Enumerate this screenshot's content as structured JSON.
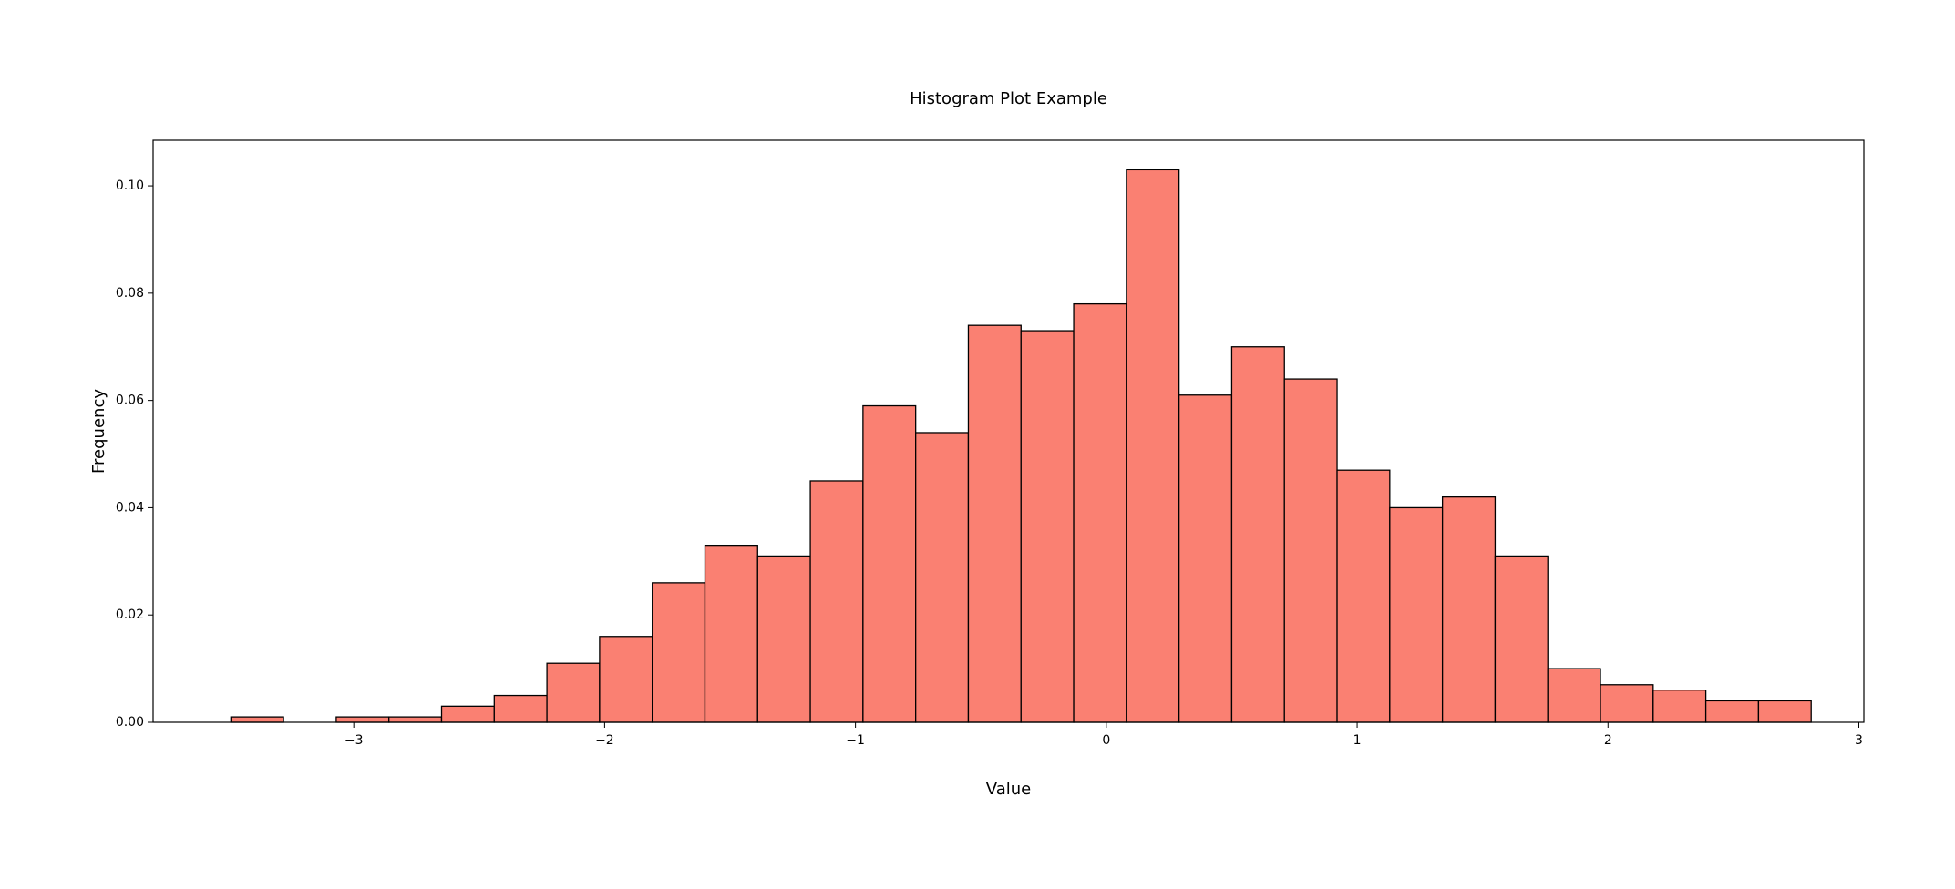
{
  "chart_data": {
    "type": "bar",
    "title": "Histogram Plot Example",
    "xlabel": "Value",
    "ylabel": "Frequency",
    "xlim": [
      -3.8,
      3.02
    ],
    "ylim": [
      0,
      0.1085
    ],
    "xticks": [
      {
        "value": -3,
        "label": "−3"
      },
      {
        "value": -2,
        "label": "−2"
      },
      {
        "value": -1,
        "label": "−1"
      },
      {
        "value": 0,
        "label": "0"
      },
      {
        "value": 1,
        "label": "1"
      },
      {
        "value": 2,
        "label": "2"
      },
      {
        "value": 3,
        "label": "3"
      }
    ],
    "yticks": [
      {
        "value": 0.0,
        "label": "0.00"
      },
      {
        "value": 0.02,
        "label": "0.02"
      },
      {
        "value": 0.04,
        "label": "0.04"
      },
      {
        "value": 0.06,
        "label": "0.06"
      },
      {
        "value": 0.08,
        "label": "0.08"
      },
      {
        "value": 0.1,
        "label": "0.10"
      }
    ],
    "grid": false,
    "bar_color": "#fa8072",
    "edge_color": "#000000",
    "bins": [
      {
        "x0": -3.49,
        "x1": -3.28,
        "value": 0.001
      },
      {
        "x0": -3.28,
        "x1": -3.07,
        "value": 0.0
      },
      {
        "x0": -3.07,
        "x1": -2.86,
        "value": 0.001
      },
      {
        "x0": -2.86,
        "x1": -2.65,
        "value": 0.001
      },
      {
        "x0": -2.65,
        "x1": -2.44,
        "value": 0.003
      },
      {
        "x0": -2.44,
        "x1": -2.23,
        "value": 0.005
      },
      {
        "x0": -2.23,
        "x1": -2.02,
        "value": 0.011
      },
      {
        "x0": -2.02,
        "x1": -1.81,
        "value": 0.016
      },
      {
        "x0": -1.81,
        "x1": -1.6,
        "value": 0.026
      },
      {
        "x0": -1.6,
        "x1": -1.39,
        "value": 0.033
      },
      {
        "x0": -1.39,
        "x1": -1.18,
        "value": 0.031
      },
      {
        "x0": -1.18,
        "x1": -0.97,
        "value": 0.045
      },
      {
        "x0": -0.97,
        "x1": -0.76,
        "value": 0.059
      },
      {
        "x0": -0.76,
        "x1": -0.55,
        "value": 0.054
      },
      {
        "x0": -0.55,
        "x1": -0.34,
        "value": 0.074
      },
      {
        "x0": -0.34,
        "x1": -0.13,
        "value": 0.073
      },
      {
        "x0": -0.13,
        "x1": 0.08,
        "value": 0.078
      },
      {
        "x0": 0.08,
        "x1": 0.29,
        "value": 0.103
      },
      {
        "x0": 0.29,
        "x1": 0.5,
        "value": 0.061
      },
      {
        "x0": 0.5,
        "x1": 0.71,
        "value": 0.07
      },
      {
        "x0": 0.71,
        "x1": 0.92,
        "value": 0.064
      },
      {
        "x0": 0.92,
        "x1": 1.13,
        "value": 0.047
      },
      {
        "x0": 1.13,
        "x1": 1.34,
        "value": 0.04
      },
      {
        "x0": 1.34,
        "x1": 1.55,
        "value": 0.042
      },
      {
        "x0": 1.55,
        "x1": 1.76,
        "value": 0.031
      },
      {
        "x0": 1.76,
        "x1": 1.97,
        "value": 0.01
      },
      {
        "x0": 1.97,
        "x1": 2.18,
        "value": 0.007
      },
      {
        "x0": 2.18,
        "x1": 2.39,
        "value": 0.006
      },
      {
        "x0": 2.39,
        "x1": 2.6,
        "value": 0.004
      },
      {
        "x0": 2.6,
        "x1": 2.81,
        "value": 0.004
      }
    ]
  }
}
